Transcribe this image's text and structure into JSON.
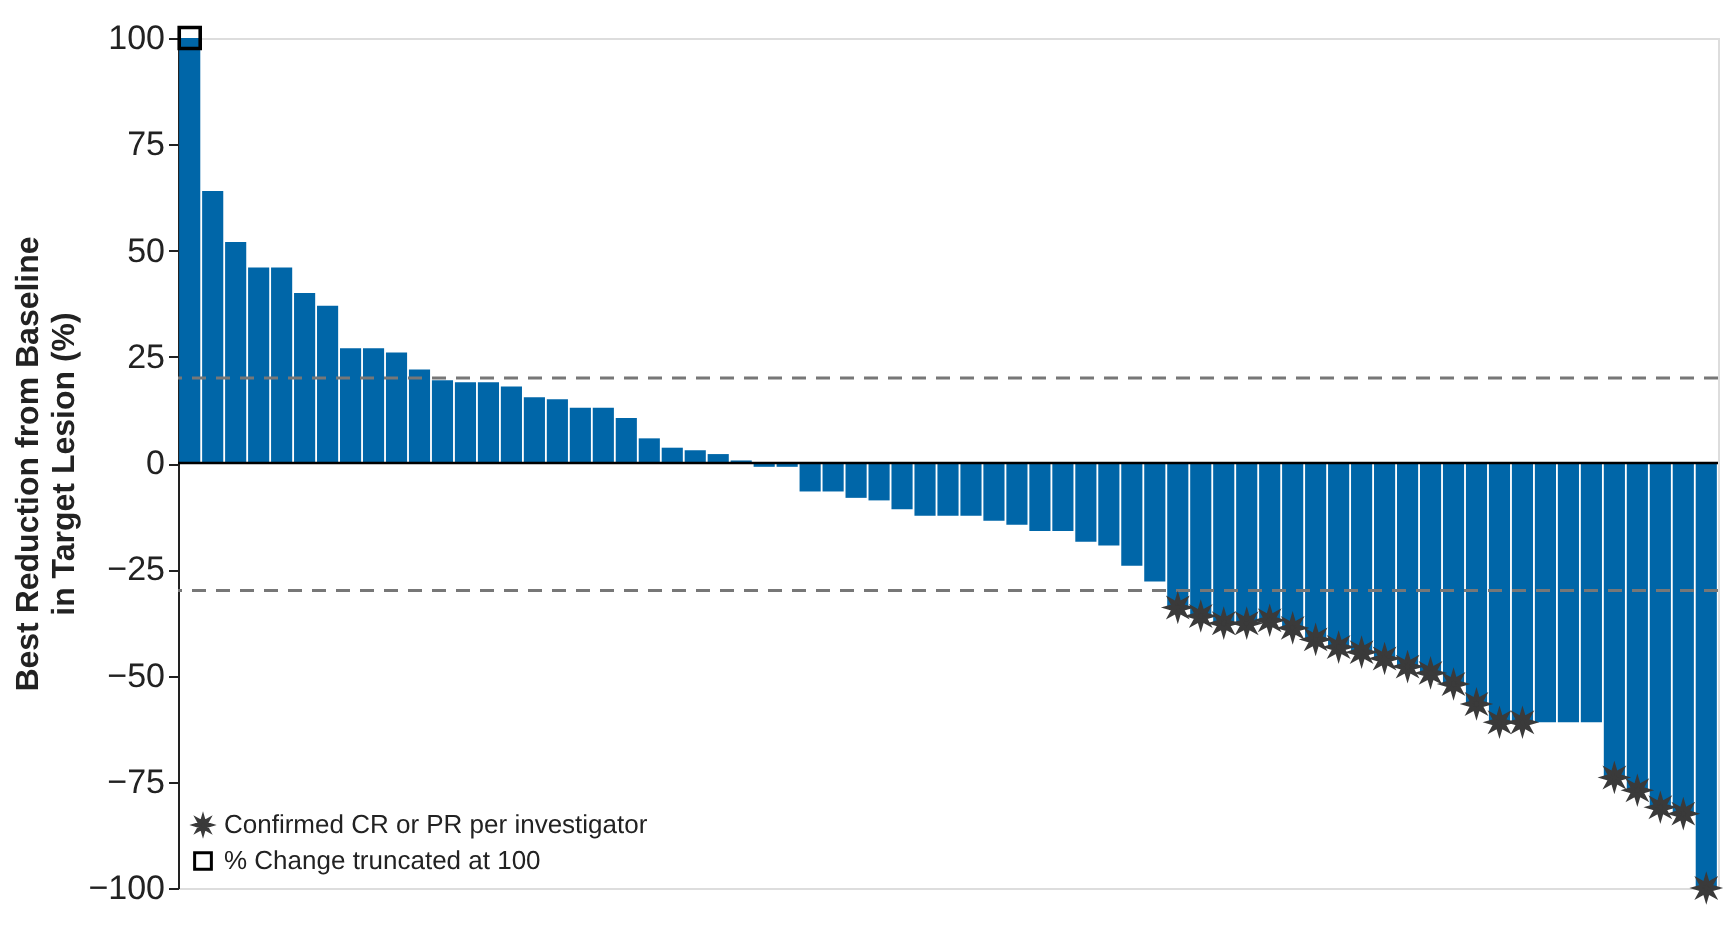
{
  "chart_data": {
    "type": "bar",
    "ylabel": "Best Reduction from Baseline\nin Target Lesion (%)",
    "categories": [
      null,
      null,
      null,
      null,
      null,
      null,
      null,
      null,
      null,
      null,
      null,
      null,
      null,
      null,
      null,
      null,
      null,
      null,
      null,
      null,
      null,
      null,
      null,
      null,
      null,
      null,
      null,
      null,
      null,
      null,
      null,
      null,
      null,
      null,
      null,
      null,
      null,
      null,
      null,
      null,
      null,
      null,
      null,
      null,
      null,
      null,
      null,
      null,
      null,
      null,
      null,
      null,
      null,
      null,
      null,
      null,
      null,
      null,
      null,
      null,
      null,
      null,
      null,
      null,
      null,
      null,
      null
    ],
    "series": [
      {
        "color": "#0066a8",
        "values": [
          100,
          64,
          52,
          46,
          46,
          40,
          37,
          27,
          27,
          26,
          22,
          19.5,
          19,
          19,
          18,
          15.5,
          15,
          13,
          13,
          10.6,
          5.8,
          3.6,
          3,
          2.1,
          0.6,
          -0.9,
          -0.9,
          -6.7,
          -6.7,
          -8.2,
          -8.8,
          -10.9,
          -12.4,
          -12.4,
          -12.4,
          -13.6,
          -14.5,
          -16,
          -16,
          -18.5,
          -19.4,
          -24.2,
          -27.9,
          -34,
          -36,
          -37.7,
          -37.7,
          -37,
          -38.8,
          -41.5,
          -43.3,
          -44.5,
          -46,
          -47.9,
          -49.4,
          -52,
          -56.7,
          -61,
          -61,
          -61,
          -61,
          -61,
          -74,
          -77,
          -81,
          -82.5,
          -100
        ]
      },
      {
        "type": "scatter",
        "name": "Confirmed CR or PR per investigator",
        "marker": "star",
        "color": "#3a3a3a",
        "values": [
          null,
          null,
          null,
          null,
          null,
          null,
          null,
          null,
          null,
          null,
          null,
          null,
          null,
          null,
          null,
          null,
          null,
          null,
          null,
          null,
          null,
          null,
          null,
          null,
          null,
          null,
          null,
          null,
          null,
          null,
          null,
          null,
          null,
          null,
          null,
          null,
          null,
          null,
          null,
          null,
          null,
          null,
          null,
          -34,
          -36,
          -37.7,
          -37.7,
          -37,
          -38.8,
          -41.5,
          -43.3,
          -44.5,
          -46,
          -47.9,
          -49.4,
          -52,
          -56.7,
          -61,
          -61,
          null,
          null,
          null,
          -74,
          -77,
          -81,
          -82.5,
          -100
        ]
      },
      {
        "type": "scatter",
        "name": "% Change truncated at 100",
        "marker": "square",
        "color": "#000000",
        "values": [
          100,
          null,
          null,
          null,
          null,
          null,
          null,
          null,
          null,
          null,
          null,
          null,
          null,
          null,
          null,
          null,
          null,
          null,
          null,
          null,
          null,
          null,
          null,
          null,
          null,
          null,
          null,
          null,
          null,
          null,
          null,
          null,
          null,
          null,
          null,
          null,
          null,
          null,
          null,
          null,
          null,
          null,
          null,
          null,
          null,
          null,
          null,
          null,
          null,
          null,
          null,
          null,
          null,
          null,
          null,
          null,
          null,
          null,
          null,
          null,
          null,
          null,
          null,
          null,
          null,
          null,
          null
        ]
      }
    ],
    "ylim": [
      -100,
      100
    ],
    "yticks": [
      -100,
      -75,
      -50,
      -25,
      0,
      25,
      50,
      75,
      100
    ],
    "ref_lines": [
      {
        "axis": "y",
        "value": 20,
        "color": "#777777",
        "line_style": "dashed"
      },
      {
        "axis": "y",
        "value": -30,
        "color": "#777777",
        "line_style": "dashed"
      },
      {
        "axis": "y",
        "value": 0,
        "color": "#000000",
        "line_style": "solid"
      }
    ],
    "legend": "bottom left",
    "tick_labels": "y",
    "grid": false
  }
}
